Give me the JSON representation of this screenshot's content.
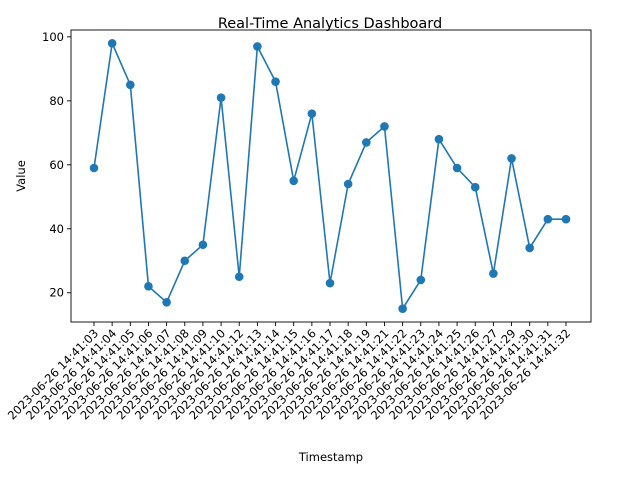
{
  "chart_data": {
    "type": "line",
    "title": "Real-Time Analytics Dashboard",
    "xlabel": "Timestamp",
    "ylabel": "Value",
    "ylim": [
      10.85,
      102.15
    ],
    "yticks": [
      20,
      40,
      60,
      80,
      100
    ],
    "grid": false,
    "x": [
      "2023-06-26 14:41:03",
      "2023-06-26 14:41:04",
      "2023-06-26 14:41:05",
      "2023-06-26 14:41:06",
      "2023-06-26 14:41:07",
      "2023-06-26 14:41:08",
      "2023-06-26 14:41:09",
      "2023-06-26 14:41:10",
      "2023-06-26 14:41:12",
      "2023-06-26 14:41:13",
      "2023-06-26 14:41:14",
      "2023-06-26 14:41:15",
      "2023-06-26 14:41:16",
      "2023-06-26 14:41:17",
      "2023-06-26 14:41:18",
      "2023-06-26 14:41:19",
      "2023-06-26 14:41:21",
      "2023-06-26 14:41:22",
      "2023-06-26 14:41:23",
      "2023-06-26 14:41:24",
      "2023-06-26 14:41:25",
      "2023-06-26 14:41:26",
      "2023-06-26 14:41:27",
      "2023-06-26 14:41:29",
      "2023-06-26 14:41:30",
      "2023-06-26 14:41:31",
      "2023-06-26 14:41:32"
    ],
    "values": [
      59,
      98,
      85,
      22,
      17,
      30,
      35,
      81,
      25,
      97,
      86,
      55,
      76,
      23,
      54,
      67,
      72,
      15,
      24,
      68,
      59,
      53,
      26,
      62,
      34,
      43,
      43
    ],
    "colors": {
      "series": "#1f77b4"
    }
  }
}
